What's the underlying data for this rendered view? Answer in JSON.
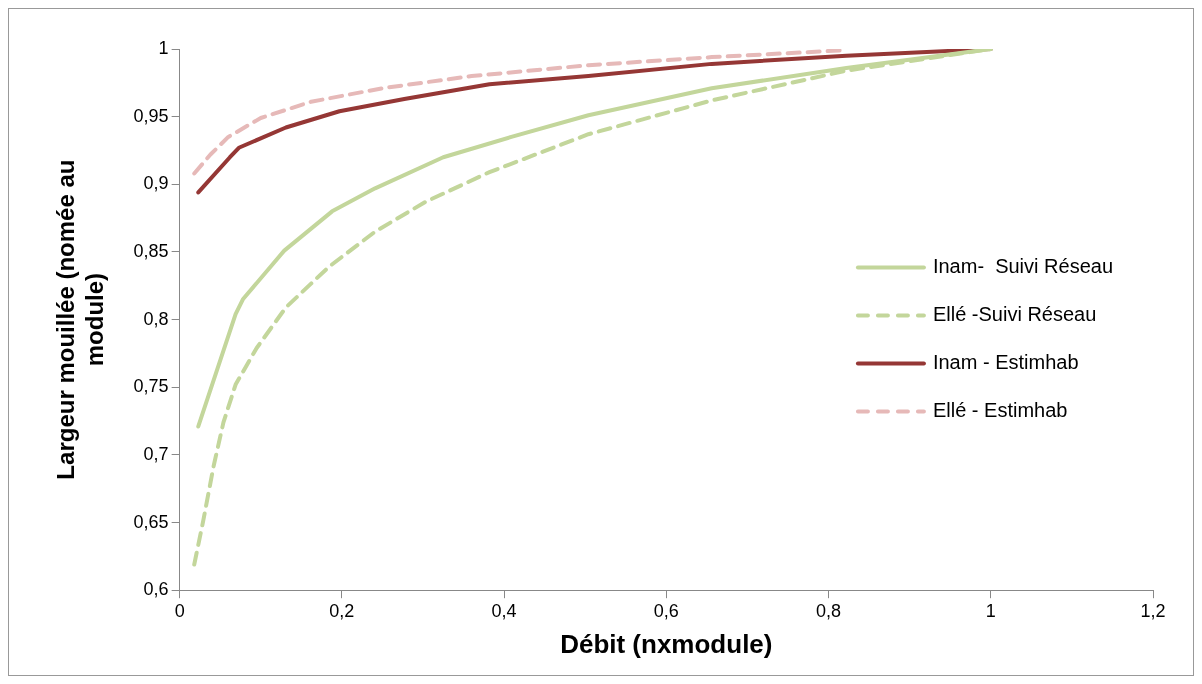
{
  "chart_data": {
    "type": "line",
    "xlabel": "Débit (nxmodule)",
    "ylabel": "Largeur mouillée (nomée au module)",
    "xlim": [
      0,
      1.2
    ],
    "xticks": [
      0,
      {
        "value": 0.2,
        "label": "0,2"
      },
      {
        "value": 0.4,
        "label": "0,4"
      },
      {
        "value": 0.6,
        "label": "0,6"
      },
      {
        "value": 0.8,
        "label": "0,8"
      },
      1,
      {
        "value": 1.2,
        "label": "1,2"
      }
    ],
    "ylim": [
      0.6,
      1
    ],
    "yticks": [
      {
        "value": 0.6,
        "label": "0,6"
      },
      {
        "value": 0.65,
        "label": "0,65"
      },
      {
        "value": 0.7,
        "label": "0,7"
      },
      {
        "value": 0.75,
        "label": "0,75"
      },
      {
        "value": 0.8,
        "label": "0,8"
      },
      {
        "value": 0.85,
        "label": "0,85"
      },
      {
        "value": 0.9,
        "label": "0,9"
      },
      {
        "value": 0.95,
        "label": "0,95"
      },
      1
    ],
    "grid": false,
    "legend": "right",
    "marker": "none",
    "series": [
      {
        "name": "Inam-  Suivi Réseau",
        "color": "#c3d69b",
        "line_style": "solid",
        "x": [
          0.023,
          0.069,
          0.078,
          0.129,
          0.188,
          0.241,
          0.325,
          0.409,
          0.504,
          0.656,
          0.822,
          1.0
        ],
        "values": [
          0.721,
          0.804,
          0.815,
          0.851,
          0.88,
          0.897,
          0.92,
          0.935,
          0.951,
          0.971,
          0.986,
          1.0
        ]
      },
      {
        "name": "Ellé -Suivi Réseau",
        "color": "#c3d69b",
        "line_style": "dashed",
        "x": [
          0.018,
          0.029,
          0.042,
          0.054,
          0.069,
          0.095,
          0.131,
          0.184,
          0.241,
          0.303,
          0.382,
          0.504,
          0.656,
          0.822,
          1.0
        ],
        "values": [
          0.619,
          0.651,
          0.692,
          0.724,
          0.752,
          0.779,
          0.809,
          0.839,
          0.865,
          0.887,
          0.909,
          0.937,
          0.962,
          0.984,
          1.0
        ]
      },
      {
        "name": "Inam - Estimhab",
        "color": "#953735",
        "line_style": "solid",
        "x": [
          0.023,
          0.062,
          0.073,
          0.131,
          0.197,
          0.277,
          0.382,
          0.504,
          0.656,
          0.822,
          1.0
        ],
        "values": [
          0.894,
          0.92,
          0.927,
          0.942,
          0.954,
          0.963,
          0.974,
          0.98,
          0.989,
          0.995,
          1.0
        ]
      },
      {
        "name": "Ellé - Estimhab",
        "color": "#e6b9b8",
        "line_style": "dashed",
        "x": [
          0.018,
          0.038,
          0.06,
          0.1,
          0.162,
          0.25,
          0.36,
          0.504,
          0.656,
          0.817
        ],
        "values": [
          0.908,
          0.922,
          0.935,
          0.949,
          0.961,
          0.971,
          0.98,
          0.988,
          0.994,
          0.999
        ]
      }
    ]
  }
}
